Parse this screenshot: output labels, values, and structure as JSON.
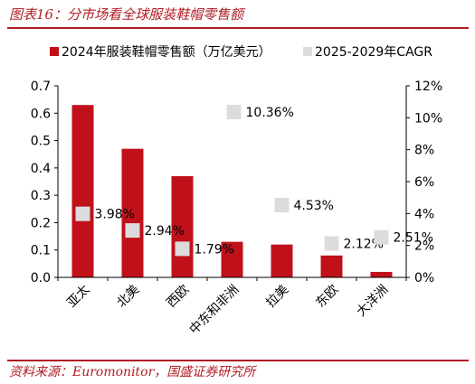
{
  "figure": {
    "title": "图表16：分市场看全球服装鞋帽零售额",
    "source": "资料来源：Euromonitor，国盛证券研究所"
  },
  "chart_data": {
    "type": "bar",
    "categories": [
      "亚太",
      "北美",
      "西欧",
      "中东和非洲",
      "拉美",
      "东欧",
      "大洋洲"
    ],
    "series": [
      {
        "name": "2024年服装鞋帽零售额（万亿美元）",
        "chart": "bar",
        "axis": "left",
        "color": "#c0111b",
        "values": [
          0.63,
          0.47,
          0.37,
          0.13,
          0.12,
          0.08,
          0.02
        ]
      },
      {
        "name": "2025-2029年CAGR",
        "chart": "scatter",
        "axis": "right",
        "color": "#dcdcdc",
        "values": [
          3.98,
          2.94,
          1.79,
          10.36,
          4.53,
          2.12,
          2.51
        ],
        "labels": [
          "3.98%",
          "2.94%",
          "1.79%",
          "10.36%",
          "4.53%",
          "2.12%",
          "2.51%"
        ]
      }
    ],
    "y_left": {
      "range": [
        0,
        0.7
      ],
      "ticks": [
        "0.0",
        "0.1",
        "0.2",
        "0.3",
        "0.4",
        "0.5",
        "0.6",
        "0.7"
      ]
    },
    "y_right": {
      "range": [
        0,
        12
      ],
      "ticks": [
        "0%",
        "2%",
        "4%",
        "6%",
        "8%",
        "10%",
        "12%"
      ]
    },
    "grid": false,
    "legend_position": "top"
  }
}
